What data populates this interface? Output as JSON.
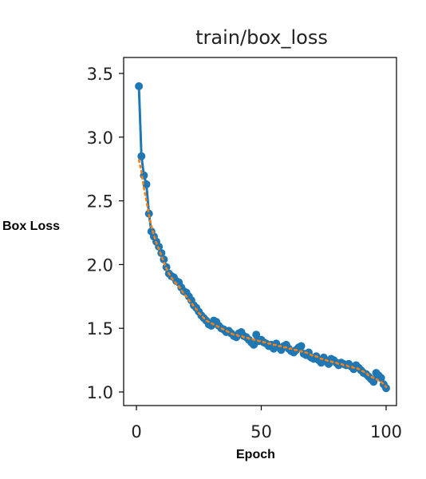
{
  "chart_data": {
    "type": "line",
    "title": "train/box_loss",
    "xlabel": "Epoch",
    "ylabel": "Box Loss",
    "xlim": [
      0,
      100
    ],
    "ylim": [
      1.0,
      3.5
    ],
    "xticks": [
      0,
      50,
      100
    ],
    "yticks": [
      1.0,
      1.5,
      2.0,
      2.5,
      3.0,
      3.5
    ],
    "xtick_labels": [
      "0",
      "50",
      "100"
    ],
    "ytick_labels": [
      "1.0",
      "1.5",
      "2.0",
      "2.5",
      "3.0",
      "3.5"
    ],
    "grid": false,
    "legend": "none",
    "series": [
      {
        "style": "line-with-markers",
        "color": "#1f77b4",
        "x": [
          1,
          2,
          3,
          4,
          5,
          6,
          7,
          8,
          9,
          10,
          11,
          12,
          13,
          14,
          15,
          16,
          17,
          18,
          19,
          20,
          21,
          22,
          23,
          24,
          25,
          26,
          27,
          28,
          29,
          30,
          31,
          32,
          33,
          34,
          35,
          36,
          37,
          38,
          39,
          40,
          41,
          42,
          43,
          44,
          45,
          46,
          47,
          48,
          49,
          50,
          51,
          52,
          53,
          54,
          55,
          56,
          57,
          58,
          59,
          60,
          61,
          62,
          63,
          64,
          65,
          66,
          67,
          68,
          69,
          70,
          71,
          72,
          73,
          74,
          75,
          76,
          77,
          78,
          79,
          80,
          81,
          82,
          83,
          84,
          85,
          86,
          87,
          88,
          89,
          90,
          91,
          92,
          93,
          94,
          95,
          96,
          97,
          98,
          99,
          100
        ],
        "values": [
          3.4,
          2.85,
          2.7,
          2.63,
          2.4,
          2.26,
          2.22,
          2.18,
          2.14,
          2.09,
          2.04,
          1.98,
          1.93,
          1.91,
          1.9,
          1.87,
          1.86,
          1.82,
          1.79,
          1.78,
          1.75,
          1.72,
          1.68,
          1.66,
          1.63,
          1.6,
          1.58,
          1.56,
          1.53,
          1.52,
          1.56,
          1.55,
          1.52,
          1.5,
          1.49,
          1.47,
          1.48,
          1.46,
          1.44,
          1.43,
          1.46,
          1.47,
          1.44,
          1.43,
          1.41,
          1.39,
          1.37,
          1.45,
          1.4,
          1.41,
          1.39,
          1.38,
          1.36,
          1.37,
          1.34,
          1.38,
          1.35,
          1.33,
          1.36,
          1.37,
          1.34,
          1.32,
          1.31,
          1.33,
          1.35,
          1.36,
          1.3,
          1.29,
          1.31,
          1.27,
          1.26,
          1.28,
          1.25,
          1.23,
          1.27,
          1.24,
          1.22,
          1.26,
          1.25,
          1.23,
          1.21,
          1.23,
          1.22,
          1.21,
          1.22,
          1.2,
          1.18,
          1.21,
          1.19,
          1.17,
          1.15,
          1.14,
          1.12,
          1.1,
          1.08,
          1.15,
          1.13,
          1.11,
          1.06,
          1.03
        ]
      },
      {
        "style": "dotted",
        "color": "#ff7f0e",
        "x": [
          1,
          2,
          3,
          4,
          5,
          6,
          7,
          8,
          9,
          10,
          11,
          12,
          13,
          14,
          15,
          16,
          17,
          18,
          19,
          20,
          21,
          22,
          23,
          24,
          25,
          26,
          27,
          28,
          29,
          30,
          31,
          32,
          33,
          34,
          35,
          36,
          37,
          38,
          39,
          40,
          41,
          42,
          43,
          44,
          45,
          46,
          47,
          48,
          49,
          50,
          51,
          52,
          53,
          54,
          55,
          56,
          57,
          58,
          59,
          60,
          61,
          62,
          63,
          64,
          65,
          66,
          67,
          68,
          69,
          70,
          71,
          72,
          73,
          74,
          75,
          76,
          77,
          78,
          79,
          80,
          81,
          82,
          83,
          84,
          85,
          86,
          87,
          88,
          89,
          90,
          91,
          92,
          93,
          94,
          95,
          96,
          97,
          98,
          99,
          100
        ],
        "values": [
          2.82,
          2.73,
          2.6,
          2.5,
          2.39,
          2.3,
          2.23,
          2.17,
          2.12,
          2.07,
          2.02,
          1.97,
          1.93,
          1.9,
          1.87,
          1.85,
          1.83,
          1.8,
          1.77,
          1.75,
          1.72,
          1.7,
          1.67,
          1.65,
          1.62,
          1.6,
          1.58,
          1.56,
          1.55,
          1.54,
          1.53,
          1.52,
          1.51,
          1.5,
          1.49,
          1.48,
          1.47,
          1.46,
          1.45,
          1.45,
          1.44,
          1.44,
          1.43,
          1.43,
          1.42,
          1.42,
          1.41,
          1.41,
          1.4,
          1.4,
          1.39,
          1.39,
          1.38,
          1.38,
          1.37,
          1.37,
          1.36,
          1.36,
          1.35,
          1.35,
          1.34,
          1.34,
          1.33,
          1.33,
          1.32,
          1.32,
          1.31,
          1.31,
          1.3,
          1.29,
          1.28,
          1.28,
          1.27,
          1.26,
          1.26,
          1.25,
          1.24,
          1.24,
          1.23,
          1.23,
          1.22,
          1.22,
          1.21,
          1.21,
          1.2,
          1.2,
          1.19,
          1.19,
          1.18,
          1.17,
          1.16,
          1.15,
          1.13,
          1.12,
          1.11,
          1.1,
          1.09,
          1.08,
          1.06,
          1.04
        ]
      }
    ]
  }
}
